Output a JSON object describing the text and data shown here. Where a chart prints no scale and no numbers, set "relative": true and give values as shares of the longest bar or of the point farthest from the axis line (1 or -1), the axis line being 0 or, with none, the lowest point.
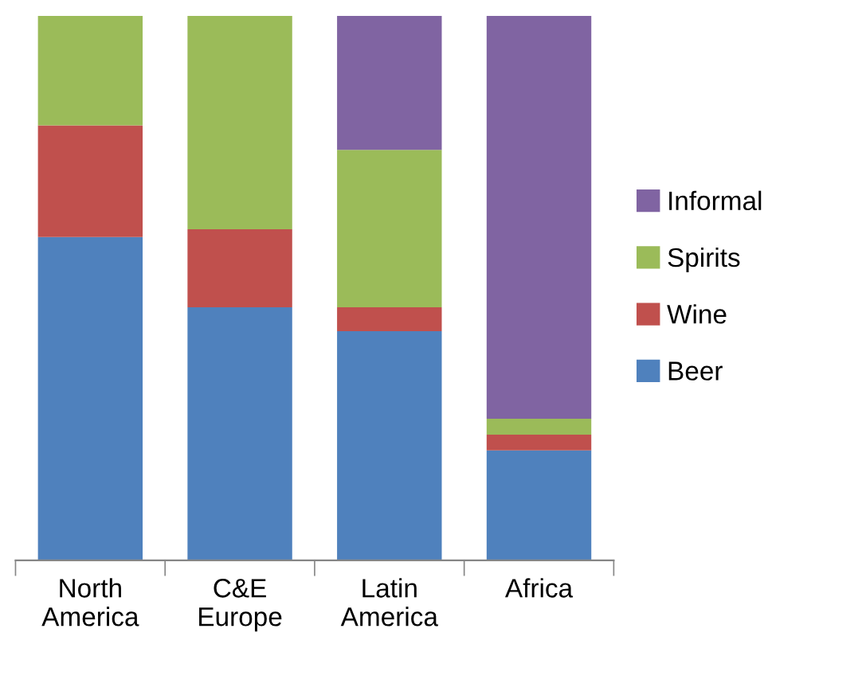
{
  "chart_data": {
    "type": "bar",
    "stacked": true,
    "relative": true,
    "legend": "right",
    "grid": false,
    "categories": [
      "North\nAmerica",
      "C&E\nEurope",
      "Latin\nAmerica",
      "Africa"
    ],
    "series": [
      {
        "name": "Beer",
        "color": "#4f81bd",
        "values": [
          0.594,
          0.465,
          0.421,
          0.202
        ]
      },
      {
        "name": "Wine",
        "color": "#c0504d",
        "values": [
          0.205,
          0.143,
          0.044,
          0.029
        ]
      },
      {
        "name": "Spirits",
        "color": "#9bbb59",
        "values": [
          0.201,
          0.392,
          0.289,
          0.029
        ]
      },
      {
        "name": "Informal",
        "color": "#8064a2",
        "values": [
          0,
          0,
          0.246,
          0.74
        ]
      }
    ]
  }
}
